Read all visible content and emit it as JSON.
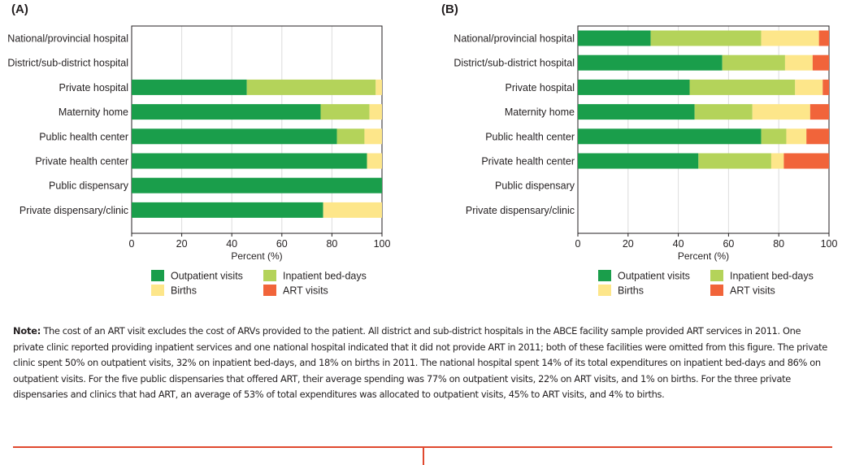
{
  "colors": {
    "Outpatient visits": "#1a9e4b",
    "Inpatient bed-days": "#b4d35a",
    "Births": "#fde68a",
    "ART visits": "#f1643a",
    "grid": "#dcdcdc",
    "rule": "#e0492f"
  },
  "chart_data": [
    {
      "type": "bar",
      "orientation": "horizontal",
      "stacked": true,
      "panel_label": "(A)",
      "xlabel": "Percent (%)",
      "xlim": [
        0,
        100
      ],
      "xticks": [
        0,
        20,
        40,
        60,
        80,
        100
      ],
      "grid": true,
      "legend_position": "bottom",
      "categories": [
        "National/provincial hospital",
        "District/sub-district hospital",
        "Private hospital",
        "Maternity home",
        "Public health center",
        "Private health center",
        "Public dispensary",
        "Private dispensary/clinic"
      ],
      "series": [
        {
          "name": "Outpatient visits",
          "values": [
            0,
            0,
            46,
            75.5,
            82,
            94,
            100,
            76.5
          ]
        },
        {
          "name": "Inpatient bed-days",
          "values": [
            0,
            0,
            51.5,
            19.5,
            11,
            0,
            0,
            0
          ]
        },
        {
          "name": "Births",
          "values": [
            0,
            0,
            2.5,
            5,
            7,
            6,
            0,
            23.5
          ]
        },
        {
          "name": "ART visits",
          "values": [
            0,
            0,
            0,
            0,
            0,
            0,
            0,
            0
          ]
        }
      ]
    },
    {
      "type": "bar",
      "orientation": "horizontal",
      "stacked": true,
      "panel_label": "(B)",
      "xlabel": "Percent (%)",
      "xlim": [
        0,
        100
      ],
      "xticks": [
        0,
        20,
        40,
        60,
        80,
        100
      ],
      "grid": true,
      "legend_position": "bottom",
      "categories": [
        "National/provincial hospital",
        "District/sub-district hospital",
        "Private hospital",
        "Maternity home",
        "Public health center",
        "Private health center",
        "Public dispensary",
        "Private dispensary/clinic"
      ],
      "series": [
        {
          "name": "Outpatient visits",
          "values": [
            29,
            57.5,
            44.5,
            46.5,
            73,
            48,
            0,
            0
          ]
        },
        {
          "name": "Inpatient bed-days",
          "values": [
            44,
            25,
            42,
            23,
            10,
            29,
            0,
            0
          ]
        },
        {
          "name": "Births",
          "values": [
            23,
            11,
            11,
            23,
            8,
            5,
            0,
            0
          ]
        },
        {
          "name": "ART visits",
          "values": [
            4,
            6.5,
            2.5,
            7.5,
            9,
            18,
            0,
            0
          ]
        }
      ]
    }
  ],
  "legend": [
    {
      "label": "Outpatient visits",
      "color": "#1a9e4b"
    },
    {
      "label": "Inpatient bed-days",
      "color": "#b4d35a"
    },
    {
      "label": "Births",
      "color": "#fde68a"
    },
    {
      "label": "ART visits",
      "color": "#f1643a"
    }
  ],
  "note": {
    "label": "Note:",
    "text": " The cost of an ART visit excludes the cost of ARVs provided to the patient. All district and sub-district hospitals in the ABCE facility sample provided ART services in 2011. One private clinic reported providing inpatient services and one national hospital indicated that it did not provide ART in 2011; both of these facilities were omitted from this figure. The private clinic spent 50% on outpatient visits, 32% on inpatient bed-days, and 18% on births in 2011. The national hospital spent 14% of its total expenditures on inpatient bed-days and 86% on outpatient visits. For the five public dispensaries that offered ART, their average spending was 77% on outpatient visits, 22% on ART visits, and 1% on births. For the three private dispensaries and clinics that had ART, an average of 53% of total expenditures was allocated to outpatient visits, 45% to ART visits, and 4% to births."
  }
}
